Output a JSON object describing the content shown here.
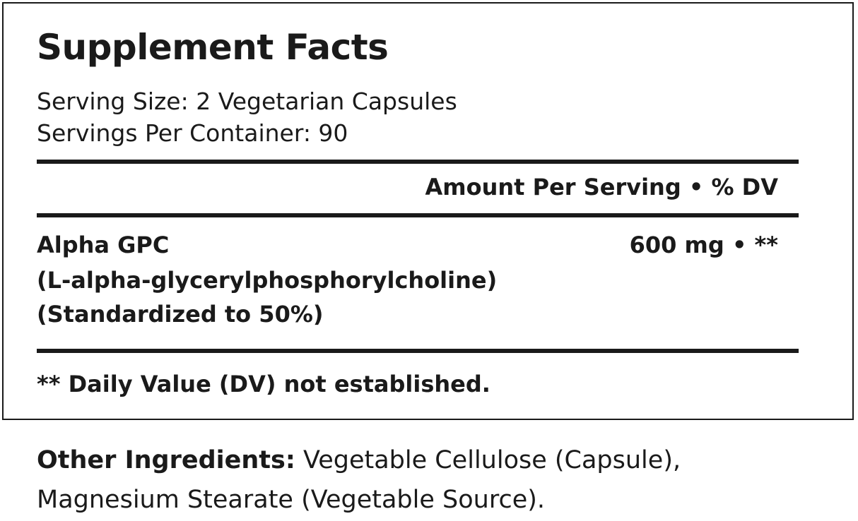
{
  "label": {
    "title": "Supplement Facts",
    "serving_size": "Serving Size: 2 Vegetarian Capsules",
    "servings_per_container": "Servings Per Container: 90",
    "column_header": "Amount Per Serving • % DV",
    "ingredients": [
      {
        "name": "Alpha GPC",
        "subname": "(L-alpha-glycerylphosphorylcholine)",
        "note": "(Standardized to 50%)",
        "amount": "600 mg • **"
      }
    ],
    "footnote": "** Daily Value (DV) not established."
  },
  "other_ingredients": {
    "label": "Other Ingredients:",
    "line1": " Vegetable Cellulose (Capsule),",
    "line2": "Magnesium Stearate (Vegetable Source)."
  }
}
